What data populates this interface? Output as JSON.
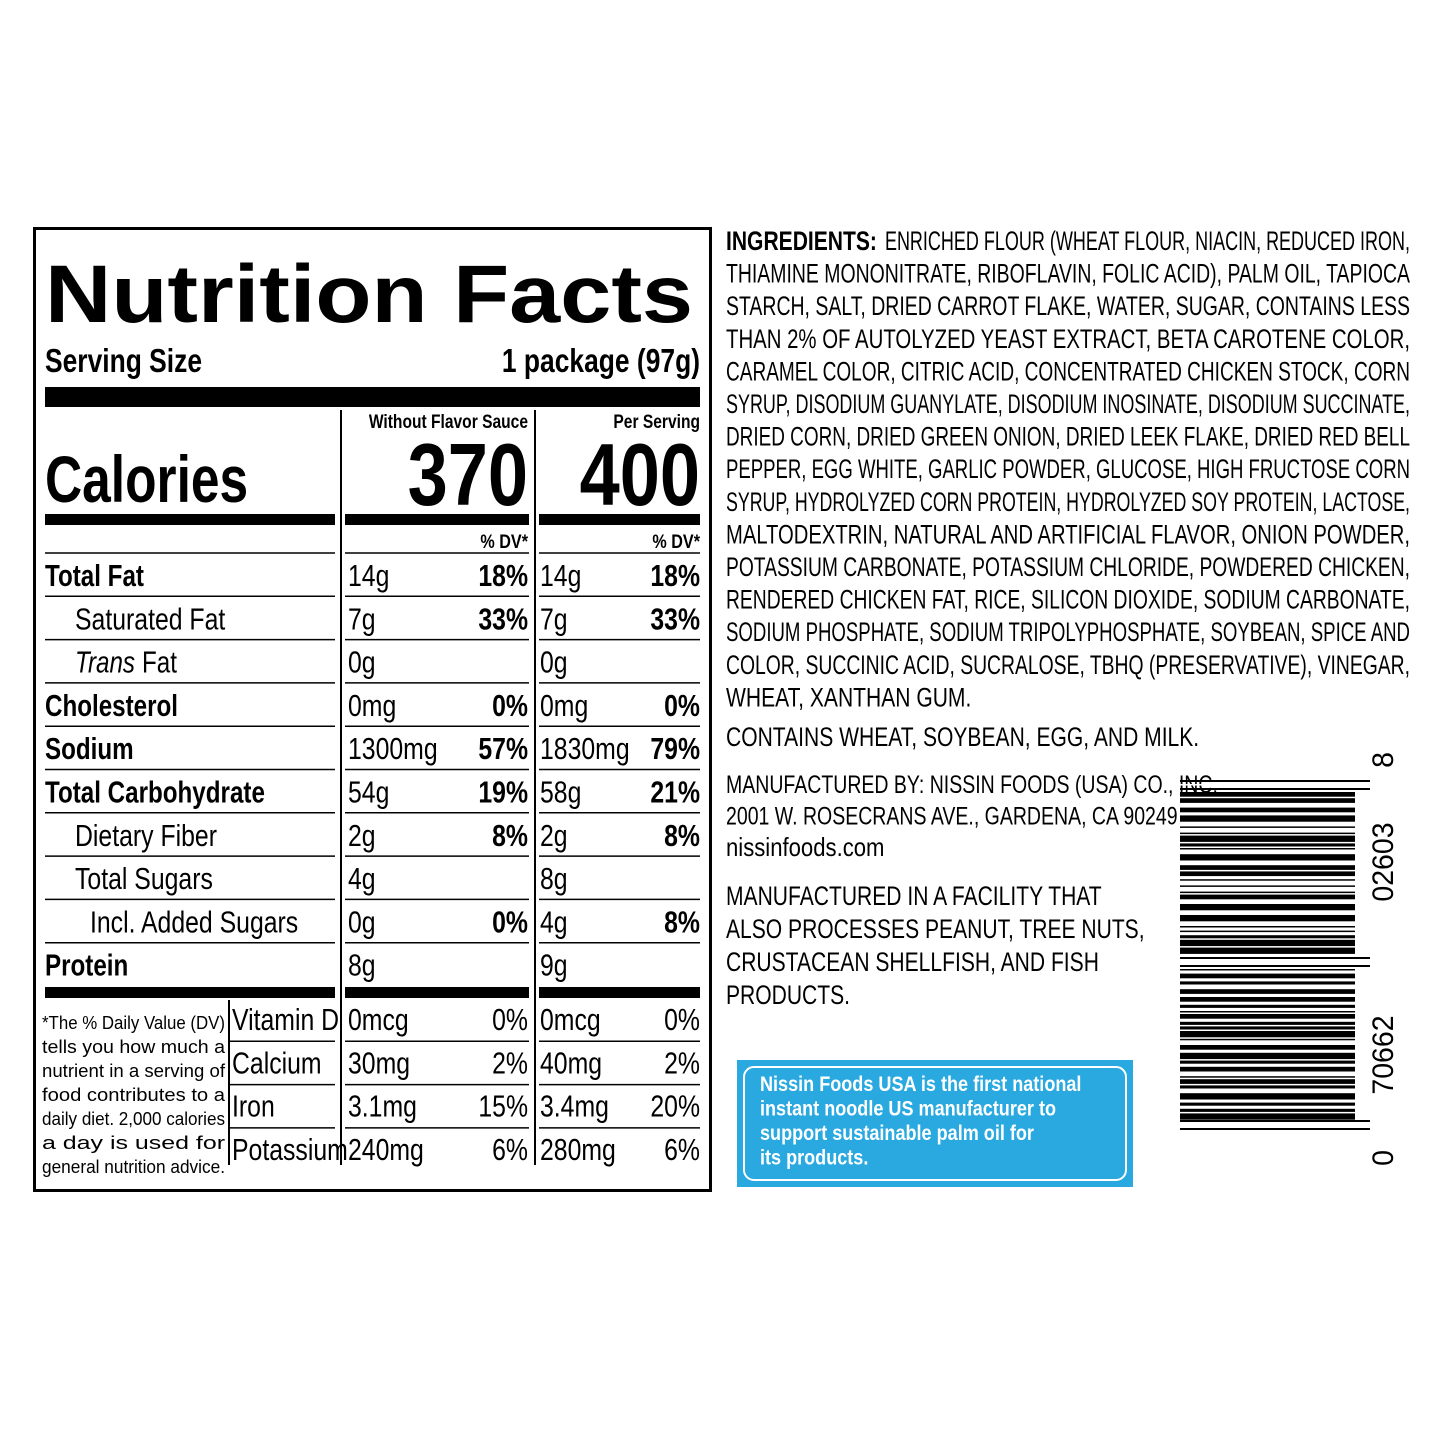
{
  "nutrition_facts": {
    "title": "Nutrition Facts",
    "serving_size_label": "Serving Size",
    "serving_size": "1 package (97g)",
    "columns": [
      "Without Flavor Sauce",
      "Per Serving"
    ],
    "calories_label": "Calories",
    "calories": [
      "370",
      "400"
    ],
    "dv_header": "% DV*",
    "rows": [
      {
        "name": "Total Fat",
        "level": 0,
        "values": [
          [
            "14g",
            "18%"
          ],
          [
            "14g",
            "18%"
          ]
        ]
      },
      {
        "name": "Saturated Fat",
        "level": 1,
        "values": [
          [
            "7g",
            "33%"
          ],
          [
            "7g",
            "33%"
          ]
        ]
      },
      {
        "italic_prefix": "Trans",
        "name": "Fat",
        "level": 1,
        "values": [
          [
            "0g"
          ],
          [
            "0g"
          ]
        ]
      },
      {
        "name": "Cholesterol",
        "level": 0,
        "values": [
          [
            "0mg",
            "0%"
          ],
          [
            "0mg",
            "0%"
          ]
        ]
      },
      {
        "name": "Sodium",
        "level": 0,
        "values": [
          [
            "1300mg",
            "57%"
          ],
          [
            "1830mg",
            "79%"
          ]
        ]
      },
      {
        "name": "Total Carbohydrate",
        "level": 0,
        "values": [
          [
            "54g",
            "19%"
          ],
          [
            "58g",
            "21%"
          ]
        ]
      },
      {
        "name": "Dietary Fiber",
        "level": 1,
        "values": [
          [
            "2g",
            "8%"
          ],
          [
            "2g",
            "8%"
          ]
        ]
      },
      {
        "name": "Total Sugars",
        "level": 1,
        "values": [
          [
            "4g"
          ],
          [
            "8g"
          ]
        ]
      },
      {
        "name": "Incl. Added Sugars",
        "level": 2,
        "values": [
          [
            "0g",
            "0%"
          ],
          [
            "4g",
            "8%"
          ]
        ]
      },
      {
        "name": "Protein",
        "level": 0,
        "values": [
          [
            "8g"
          ],
          [
            "9g"
          ]
        ]
      }
    ],
    "footnote": [
      "*The % Daily Value (DV)",
      "tells you how much a",
      "nutrient in a serving of",
      "food contributes to a",
      "daily diet. 2,000 calories",
      "a day is used for",
      "general nutrition advice."
    ],
    "vitamins": [
      {
        "name": "Vitamin D",
        "values": [
          [
            "0mcg",
            "0%"
          ],
          [
            "0mcg",
            "0%"
          ]
        ]
      },
      {
        "name": "Calcium",
        "values": [
          [
            "30mg",
            "2%"
          ],
          [
            "40mg",
            "2%"
          ]
        ]
      },
      {
        "name": "Iron",
        "values": [
          [
            "3.1mg",
            "15%"
          ],
          [
            "3.4mg",
            "20%"
          ]
        ]
      },
      {
        "name": "Potassium",
        "values": [
          [
            "240mg",
            "6%"
          ],
          [
            "280mg",
            "6%"
          ]
        ]
      }
    ]
  },
  "ingredients": {
    "label": "INGREDIENTS:",
    "lines": [
      "ENRICHED FLOUR (WHEAT FLOUR, NIACIN, REDUCED IRON,",
      "THIAMINE MONONITRATE, RIBOFLAVIN, FOLIC ACID), PALM OIL, TAPIOCA",
      "STARCH, SALT, DRIED CARROT FLAKE, WATER, SUGAR, CONTAINS LESS",
      "THAN 2% OF AUTOLYZED YEAST EXTRACT, BETA CAROTENE COLOR,",
      "CARAMEL COLOR, CITRIC ACID, CONCENTRATED CHICKEN STOCK, CORN",
      "SYRUP, DISODIUM GUANYLATE, DISODIUM INOSINATE, DISODIUM SUCCINATE,",
      "DRIED CORN, DRIED GREEN ONION, DRIED LEEK FLAKE, DRIED RED BELL",
      "PEPPER, EGG WHITE, GARLIC POWDER, GLUCOSE, HIGH FRUCTOSE CORN",
      "SYRUP, HYDROLYZED CORN PROTEIN, HYDROLYZED SOY PROTEIN, LACTOSE,",
      "MALTODEXTRIN, NATURAL AND ARTIFICIAL FLAVOR, ONION POWDER,",
      "POTASSIUM CARBONATE, POTASSIUM CHLORIDE, POWDERED CHICKEN,",
      "RENDERED CHICKEN FAT, RICE, SILICON DIOXIDE, SODIUM CARBONATE,",
      "SODIUM PHOSPHATE, SODIUM TRIPOLYPHOSPHATE, SOYBEAN, SPICE AND",
      "COLOR, SUCCINIC ACID, SUCRALOSE, TBHQ (PRESERVATIVE), VINEGAR,",
      "WHEAT, XANTHAN GUM."
    ]
  },
  "allergens": "CONTAINS WHEAT, SOYBEAN, EGG, AND MILK.",
  "manufacturer": [
    "MANUFACTURED BY: NISSIN FOODS (USA) CO., INC.",
    "2001 W. ROSECRANS AVE., GARDENA, CA  90249",
    "nissinfoods.com"
  ],
  "facility": [
    "MANUFACTURED IN A FACILITY THAT",
    "ALSO PROCESSES PEANUT, TREE NUTS,",
    "CRUSTACEAN SHELLFISH, AND FISH",
    "PRODUCTS."
  ],
  "callout": [
    "Nissin Foods USA is the first national",
    "instant noodle US manufacturer to",
    "support sustainable palm oil for",
    "its products."
  ],
  "barcode": [
    "0",
    "70662",
    "02603",
    "8"
  ]
}
